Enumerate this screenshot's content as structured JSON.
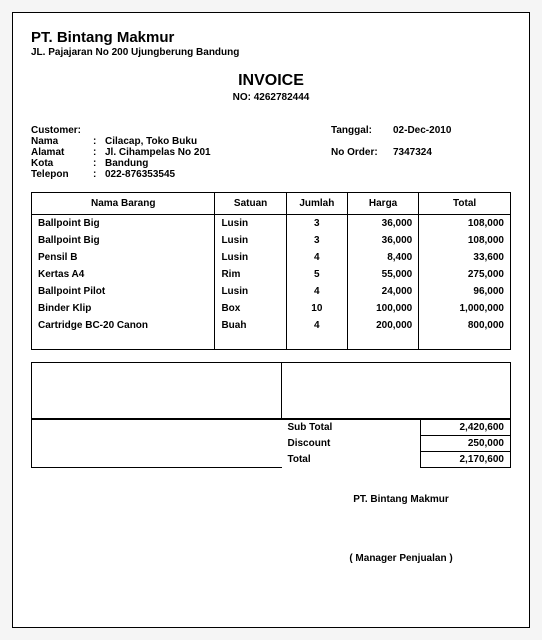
{
  "company": {
    "name": "PT. Bintang Makmur",
    "address": "JL. Pajajaran No 200 Ujungberung Bandung"
  },
  "document": {
    "title": "INVOICE",
    "number_label": "NO:",
    "number": "4262782444"
  },
  "customer": {
    "heading": "Customer:",
    "name_label": "Nama",
    "name": "Cilacap, Toko Buku",
    "address_label": "Alamat",
    "address": "Jl. Cihampelas No 201",
    "city_label": "Kota",
    "city": "Bandung",
    "phone_label": "Telepon",
    "phone": "022-876353545"
  },
  "order": {
    "date_label": "Tanggal:",
    "date": "02-Dec-2010",
    "orderno_label": "No Order:",
    "orderno": "7347324"
  },
  "columns": {
    "name": "Nama Barang",
    "unit": "Satuan",
    "qty": "Jumlah",
    "price": "Harga",
    "total": "Total"
  },
  "items": [
    {
      "name": "Ballpoint Big",
      "unit": "Lusin",
      "qty": "3",
      "price": "36,000",
      "total": "108,000"
    },
    {
      "name": "Ballpoint Big",
      "unit": "Lusin",
      "qty": "3",
      "price": "36,000",
      "total": "108,000"
    },
    {
      "name": "Pensil B",
      "unit": "Lusin",
      "qty": "4",
      "price": "8,400",
      "total": "33,600"
    },
    {
      "name": "Kertas A4",
      "unit": "Rim",
      "qty": "5",
      "price": "55,000",
      "total": "275,000"
    },
    {
      "name": "Ballpoint Pilot",
      "unit": "Lusin",
      "qty": "4",
      "price": "24,000",
      "total": "96,000"
    },
    {
      "name": "Binder Klip",
      "unit": "Box",
      "qty": "10",
      "price": "100,000",
      "total": "1,000,000"
    },
    {
      "name": "Cartridge BC-20 Canon",
      "unit": "Buah",
      "qty": "4",
      "price": "200,000",
      "total": "800,000"
    }
  ],
  "summary": {
    "subtotal_label": "Sub Total",
    "subtotal": "2,420,600",
    "discount_label": "Discount",
    "discount": "250,000",
    "total_label": "Total",
    "total": "2,170,600"
  },
  "signature": {
    "company": "PT. Bintang Makmur",
    "role": "( Manager Penjualan )"
  }
}
